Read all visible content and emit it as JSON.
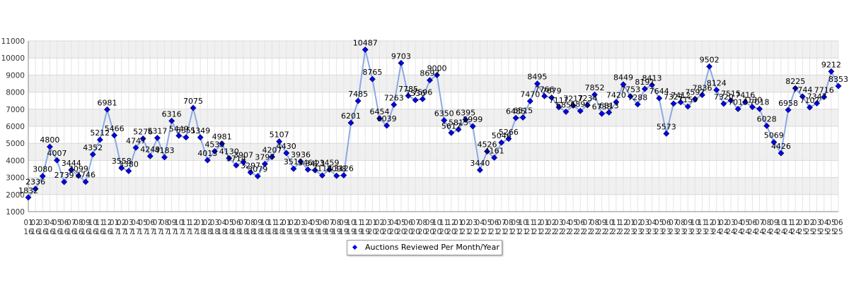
{
  "chart_data": {
    "type": "line",
    "title": "",
    "xlabel": "",
    "ylabel": "",
    "ylim": [
      1000,
      11000
    ],
    "yticks": [
      1000,
      2000,
      3000,
      4000,
      5000,
      6000,
      7000,
      8000,
      9000,
      10000,
      11000
    ],
    "y_tick_labels": [
      "1000",
      "2000",
      "3000",
      "4000",
      "5000",
      "6000",
      "7000",
      "8000",
      "9000",
      "10000",
      "11000"
    ],
    "grid": "horizontal bands",
    "legend_position": "bottom-center",
    "series": [
      {
        "name": "Auctions Reviewed Per Month/Year",
        "color": "#0000ee",
        "line_color": "#8aa9e6",
        "points": [
          {
            "x": "01/16",
            "y": 1832
          },
          {
            "x": "02/16",
            "y": 2336
          },
          {
            "x": "03/16",
            "y": 3080
          },
          {
            "x": "04/16",
            "y": 4800
          },
          {
            "x": "05/16",
            "y": 4007
          },
          {
            "x": "06/16",
            "y": 2739
          },
          {
            "x": "07/16",
            "y": 3444
          },
          {
            "x": "08/16",
            "y": 3099
          },
          {
            "x": "09/16",
            "y": 2746
          },
          {
            "x": "10/16",
            "y": 4352
          },
          {
            "x": "11/16",
            "y": 5212
          },
          {
            "x": "12/16",
            "y": 6981
          },
          {
            "x": "01/17",
            "y": 5466
          },
          {
            "x": "02/17",
            "y": 3558
          },
          {
            "x": "03/17",
            "y": 3380
          },
          {
            "x": "04/17",
            "y": 4747
          },
          {
            "x": "05/17",
            "y": 5276
          },
          {
            "x": "06/17",
            "y": 4249
          },
          {
            "x": "07/17",
            "y": 5317
          },
          {
            "x": "08/17",
            "y": 4183
          },
          {
            "x": "09/17",
            "y": 6316
          },
          {
            "x": "10/17",
            "y": 5449
          },
          {
            "x": "11/17",
            "y": 5351
          },
          {
            "x": "12/17",
            "y": 7075
          },
          {
            "x": "01/18",
            "y": 5349
          },
          {
            "x": "02/18",
            "y": 4013
          },
          {
            "x": "03/18",
            "y": 4535
          },
          {
            "x": "04/18",
            "y": 4981
          },
          {
            "x": "05/18",
            "y": 4130
          },
          {
            "x": "06/18",
            "y": 3714
          },
          {
            "x": "07/18",
            "y": 3907
          },
          {
            "x": "08/18",
            "y": 3297
          },
          {
            "x": "09/18",
            "y": 3079
          },
          {
            "x": "10/18",
            "y": 3797
          },
          {
            "x": "11/18",
            "y": 4207
          },
          {
            "x": "12/18",
            "y": 5107
          },
          {
            "x": "01/19",
            "y": 4430
          },
          {
            "x": "02/19",
            "y": 3511
          },
          {
            "x": "03/19",
            "y": 3936
          },
          {
            "x": "04/19",
            "y": 3464
          },
          {
            "x": "05/19",
            "y": 3423
          },
          {
            "x": "06/19",
            "y": 3118
          },
          {
            "x": "07/19",
            "y": 3459
          },
          {
            "x": "08/19",
            "y": 3098
          },
          {
            "x": "09/19",
            "y": 3126
          },
          {
            "x": "10/19",
            "y": 6201
          },
          {
            "x": "11/19",
            "y": 7485
          },
          {
            "x": "12/19",
            "y": 10487
          },
          {
            "x": "01/20",
            "y": 8765
          },
          {
            "x": "02/20",
            "y": 6454
          },
          {
            "x": "03/20",
            "y": 6039
          },
          {
            "x": "04/20",
            "y": 7263
          },
          {
            "x": "05/20",
            "y": 9703
          },
          {
            "x": "06/20",
            "y": 7785
          },
          {
            "x": "07/20",
            "y": 7536
          },
          {
            "x": "08/20",
            "y": 7596
          },
          {
            "x": "09/20",
            "y": 8697
          },
          {
            "x": "10/20",
            "y": 9000
          },
          {
            "x": "11/20",
            "y": 6350
          },
          {
            "x": "12/20",
            "y": 5617
          },
          {
            "x": "01/21",
            "y": 5815
          },
          {
            "x": "02/21",
            "y": 6395
          },
          {
            "x": "03/21",
            "y": 5999
          },
          {
            "x": "04/21",
            "y": 3440
          },
          {
            "x": "05/21",
            "y": 4526
          },
          {
            "x": "06/21",
            "y": 4161
          },
          {
            "x": "07/21",
            "y": 5046
          },
          {
            "x": "08/21",
            "y": 5266
          },
          {
            "x": "09/21",
            "y": 6485
          },
          {
            "x": "10/21",
            "y": 6515
          },
          {
            "x": "11/21",
            "y": 7470
          },
          {
            "x": "12/21",
            "y": 8495
          },
          {
            "x": "01/22",
            "y": 7766
          },
          {
            "x": "02/22",
            "y": 7679
          },
          {
            "x": "03/22",
            "y": 7117
          },
          {
            "x": "04/22",
            "y": 6851
          },
          {
            "x": "05/22",
            "y": 7217
          },
          {
            "x": "06/22",
            "y": 6896
          },
          {
            "x": "07/22",
            "y": 7234
          },
          {
            "x": "08/22",
            "y": 7852
          },
          {
            "x": "09/22",
            "y": 6738
          },
          {
            "x": "10/22",
            "y": 6813
          },
          {
            "x": "11/22",
            "y": 7420
          },
          {
            "x": "12/22",
            "y": 8449
          },
          {
            "x": "01/23",
            "y": 7753
          },
          {
            "x": "02/23",
            "y": 7288
          },
          {
            "x": "03/23",
            "y": 8191
          },
          {
            "x": "04/23",
            "y": 8413
          },
          {
            "x": "05/23",
            "y": 7644
          },
          {
            "x": "06/23",
            "y": 5573
          },
          {
            "x": "07/23",
            "y": 7327
          },
          {
            "x": "08/23",
            "y": 7412
          },
          {
            "x": "09/23",
            "y": 7159
          },
          {
            "x": "10/23",
            "y": 7597
          },
          {
            "x": "11/23",
            "y": 7836
          },
          {
            "x": "12/23",
            "y": 9502
          },
          {
            "x": "01/24",
            "y": 8124
          },
          {
            "x": "02/24",
            "y": 7320
          },
          {
            "x": "03/24",
            "y": 7515
          },
          {
            "x": "04/24",
            "y": 7013
          },
          {
            "x": "05/24",
            "y": 7416
          },
          {
            "x": "06/24",
            "y": 7130
          },
          {
            "x": "07/24",
            "y": 7018
          },
          {
            "x": "08/24",
            "y": 6028
          },
          {
            "x": "09/24",
            "y": 5069
          },
          {
            "x": "10/24",
            "y": 4426
          },
          {
            "x": "11/24",
            "y": 6958
          },
          {
            "x": "12/24",
            "y": 8225
          },
          {
            "x": "01/25",
            "y": 7744
          },
          {
            "x": "02/25",
            "y": 7107
          },
          {
            "x": "03/25",
            "y": 7347
          },
          {
            "x": "04/25",
            "y": 7716
          },
          {
            "x": "05/25",
            "y": 9212
          },
          {
            "x": "06/25",
            "y": 8353
          }
        ]
      }
    ]
  }
}
